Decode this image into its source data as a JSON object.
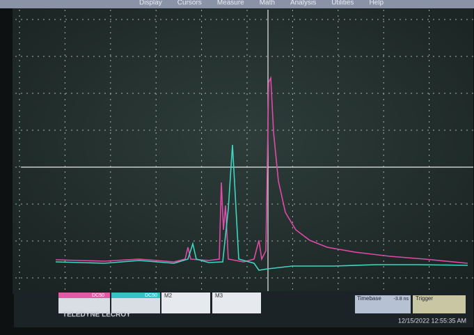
{
  "menu": [
    "Display",
    "Cursors",
    "Measure",
    "Math",
    "Analysis",
    "Utilities",
    "Help"
  ],
  "channels": [
    {
      "label": "DC50"
    },
    {
      "label": "DC50"
    }
  ],
  "math": [
    "M2",
    "M3"
  ],
  "timebase": {
    "title": "Timebase",
    "value": "-3.8 ns"
  },
  "trigger": {
    "title": "Trigger"
  },
  "brand": "TELEDYNE LECROY",
  "timestamp": "12/15/2022 12:55:35 AM"
}
